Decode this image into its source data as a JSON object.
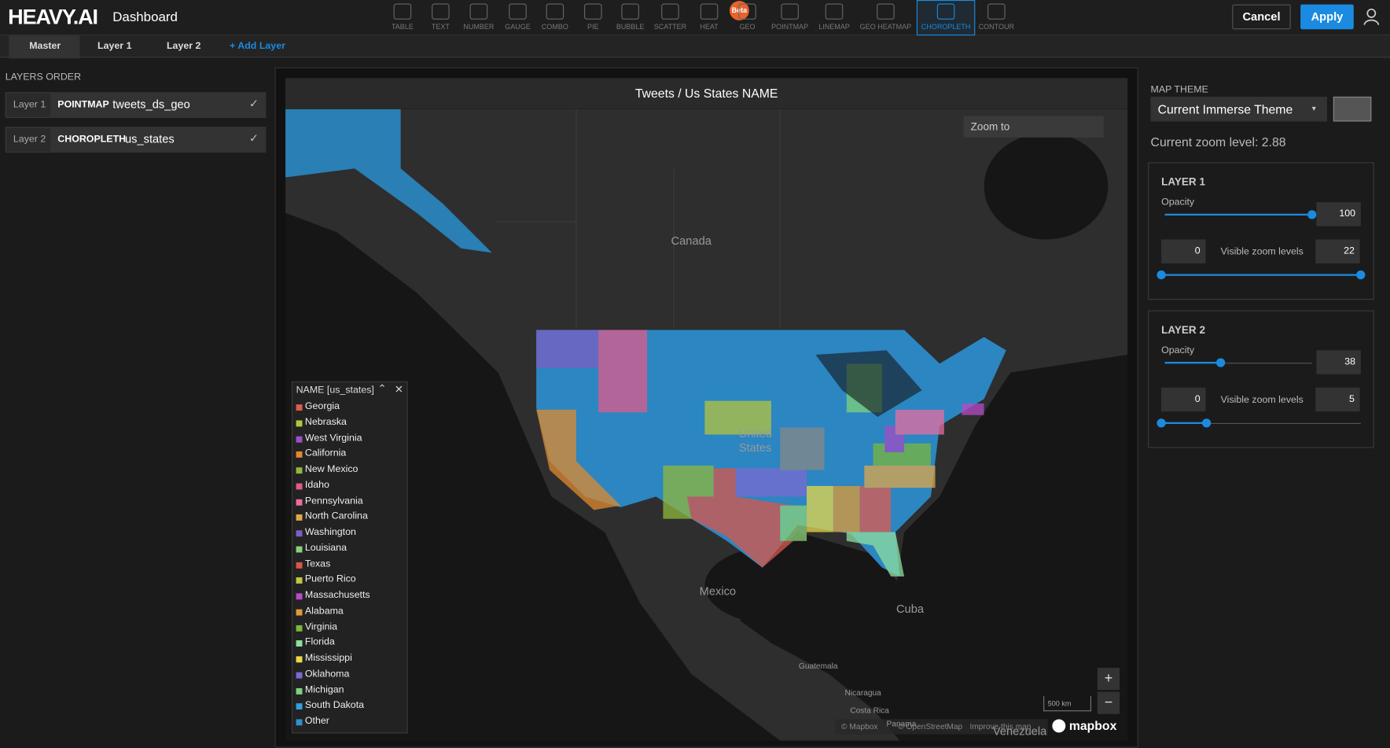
{
  "header": {
    "logo": "HEAVY.AI",
    "title": "Dashboard",
    "beta": "Beta",
    "cancel": "Cancel",
    "apply": "Apply",
    "chart_types": [
      {
        "label": "TABLE"
      },
      {
        "label": "TEXT"
      },
      {
        "label": "NUMBER"
      },
      {
        "label": "GAUGE"
      },
      {
        "label": "COMBO"
      },
      {
        "label": "PIE"
      },
      {
        "label": "BUBBLE"
      },
      {
        "label": "SCATTER"
      },
      {
        "label": "HEAT"
      },
      {
        "label": "GEO"
      },
      {
        "label": "POINTMAP"
      },
      {
        "label": "LINEMAP"
      },
      {
        "label": "GEO HEATMAP"
      },
      {
        "label": "CHOROPLETH",
        "active": true
      },
      {
        "label": "CONTOUR"
      }
    ]
  },
  "tabs": [
    "Master",
    "Layer 1",
    "Layer 2",
    "+ Add Layer"
  ],
  "layers_order": {
    "title": "LAYERS ORDER",
    "layers": [
      {
        "index": "Layer 1",
        "type": "POINTMAP",
        "source": "tweets_ds_geo"
      },
      {
        "index": "Layer 2",
        "type": "CHOROPLETH",
        "source": "us_states"
      }
    ]
  },
  "map": {
    "title": "Tweets / Us States NAME",
    "zoom_to": "Zoom to",
    "labels": [
      "Canada",
      "United States",
      "Mexico",
      "Cuba",
      "Guatemala",
      "Nicaragua",
      "Costa Rica",
      "Panama",
      "Venezuela"
    ],
    "legend": {
      "title": "NAME [us_states]",
      "items": [
        {
          "name": "Georgia",
          "color": "#e05a4f"
        },
        {
          "name": "Nebraska",
          "color": "#b5c43e"
        },
        {
          "name": "West Virginia",
          "color": "#a14fc4"
        },
        {
          "name": "California",
          "color": "#e08a2e"
        },
        {
          "name": "New Mexico",
          "color": "#8fb83c"
        },
        {
          "name": "Idaho",
          "color": "#e05a8a"
        },
        {
          "name": "Pennsylvania",
          "color": "#e76fa0"
        },
        {
          "name": "North Carolina",
          "color": "#e0a84a"
        },
        {
          "name": "Washington",
          "color": "#7c5fc2"
        },
        {
          "name": "Louisiana",
          "color": "#8ad17a"
        },
        {
          "name": "Texas",
          "color": "#d9564a"
        },
        {
          "name": "Puerto Rico",
          "color": "#c3c93a"
        },
        {
          "name": "Massachusetts",
          "color": "#b84bc9"
        },
        {
          "name": "Alabama",
          "color": "#e09a35"
        },
        {
          "name": "Virginia",
          "color": "#7ab83c"
        },
        {
          "name": "Florida",
          "color": "#8ee0a0"
        },
        {
          "name": "Mississippi",
          "color": "#e8d84a"
        },
        {
          "name": "Oklahoma",
          "color": "#7a6ad1"
        },
        {
          "name": "Michigan",
          "color": "#7ed17a"
        },
        {
          "name": "South Dakota",
          "color": "#2fa0e0"
        },
        {
          "name": "Other",
          "color": "#2f8fd0"
        }
      ]
    },
    "scale": "500 km",
    "attribution": [
      "© Mapbox",
      "© OpenStreetMap",
      "Improve this map"
    ],
    "brand": "mapbox",
    "zoom_in": "+",
    "zoom_out": "−"
  },
  "settings": {
    "map_theme_label": "MAP THEME",
    "map_theme": "Current Immerse Theme",
    "zoom_level": "Current zoom level: 2.88",
    "layers": [
      {
        "title": "LAYER 1",
        "opacity_label": "Opacity",
        "opacity": 100,
        "zoom_min": 0,
        "zoom_label": "Visible zoom levels",
        "zoom_max": 22
      },
      {
        "title": "LAYER 2",
        "opacity_label": "Opacity",
        "opacity": 38,
        "zoom_min": 0,
        "zoom_label": "Visible zoom levels",
        "zoom_max": 5
      }
    ]
  }
}
